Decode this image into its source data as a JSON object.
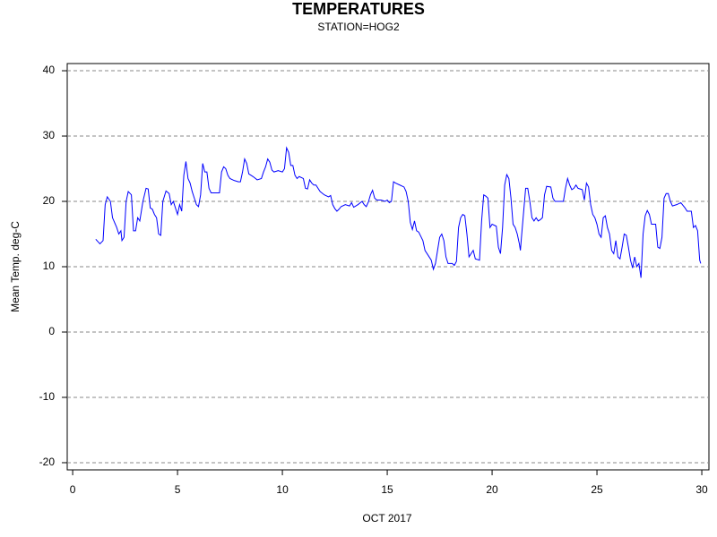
{
  "chart_data": {
    "type": "line",
    "title": "TEMPERATURES",
    "subtitle": "STATION=HOG2",
    "x_label": "OCT 2017",
    "y_label": "Mean Temp. deg-C",
    "xlim": [
      -0.26,
      30.34
    ],
    "ylim": [
      -21.1,
      41.1
    ],
    "xticks": [
      0,
      5,
      10,
      15,
      20,
      25,
      30
    ],
    "yticks": [
      -20,
      -10,
      0,
      10,
      20,
      30,
      40
    ],
    "grid": true,
    "series": [
      {
        "color": "#0000ff",
        "x": [
          1.1,
          1.3,
          1.45,
          1.55,
          1.65,
          1.8,
          1.9,
          2.1,
          2.2,
          2.3,
          2.35,
          2.45,
          2.55,
          2.65,
          2.8,
          2.9,
          3.0,
          3.1,
          3.2,
          3.35,
          3.5,
          3.6,
          3.7,
          3.8,
          3.9,
          4.0,
          4.1,
          4.2,
          4.3,
          4.45,
          4.6,
          4.7,
          4.8,
          4.9,
          5.0,
          5.1,
          5.2,
          5.3,
          5.4,
          5.5,
          5.6,
          5.7,
          5.8,
          5.9,
          6.0,
          6.1,
          6.2,
          6.3,
          6.4,
          6.5,
          6.6,
          6.8,
          7.0,
          7.1,
          7.2,
          7.3,
          7.4,
          7.5,
          7.7,
          7.9,
          8.0,
          8.1,
          8.2,
          8.3,
          8.4,
          8.6,
          8.8,
          9.0,
          9.1,
          9.2,
          9.3,
          9.4,
          9.5,
          9.6,
          9.8,
          10.0,
          10.1,
          10.2,
          10.3,
          10.4,
          10.5,
          10.6,
          10.7,
          10.8,
          11.0,
          11.1,
          11.2,
          11.3,
          11.4,
          11.5,
          11.6,
          11.8,
          12.0,
          12.2,
          12.3,
          12.4,
          12.5,
          12.6,
          12.7,
          12.8,
          13.0,
          13.2,
          13.3,
          13.4,
          13.6,
          13.8,
          13.9,
          14.0,
          14.1,
          14.2,
          14.3,
          14.4,
          14.5,
          14.7,
          14.9,
          15.0,
          15.1,
          15.2,
          15.3,
          15.4,
          15.6,
          15.8,
          15.9,
          16.0,
          16.1,
          16.2,
          16.3,
          16.4,
          16.5,
          16.7,
          16.8,
          17.0,
          17.1,
          17.2,
          17.3,
          17.4,
          17.5,
          17.6,
          17.7,
          17.8,
          17.9,
          18.1,
          18.2,
          18.3,
          18.4,
          18.5,
          18.6,
          18.7,
          18.8,
          18.9,
          19.0,
          19.1,
          19.2,
          19.4,
          19.5,
          19.6,
          19.7,
          19.8,
          19.9,
          20.0,
          20.2,
          20.3,
          20.4,
          20.5,
          20.6,
          20.7,
          20.8,
          20.9,
          21.0,
          21.1,
          21.2,
          21.3,
          21.35,
          21.4,
          21.6,
          21.7,
          21.8,
          21.9,
          22.0,
          22.1,
          22.2,
          22.3,
          22.4,
          22.5,
          22.6,
          22.8,
          22.9,
          23.0,
          23.2,
          23.4,
          23.5,
          23.6,
          23.7,
          23.8,
          23.9,
          24.0,
          24.1,
          24.3,
          24.4,
          24.5,
          24.6,
          24.7,
          24.8,
          24.9,
          25.0,
          25.1,
          25.2,
          25.3,
          25.4,
          25.5,
          25.6,
          25.7,
          25.8,
          25.9,
          26.0,
          26.1,
          26.2,
          26.3,
          26.4,
          26.5,
          26.6,
          26.7,
          26.8,
          26.9,
          27.0,
          27.1,
          27.2,
          27.3,
          27.4,
          27.5,
          27.6,
          27.8,
          27.9,
          28.0,
          28.1,
          28.2,
          28.3,
          28.4,
          28.5,
          28.6,
          28.8,
          29.0,
          29.2,
          29.3,
          29.5,
          29.6,
          29.7,
          29.8,
          29.9,
          29.95
        ],
        "values": [
          14.2,
          13.5,
          14,
          19.5,
          20.7,
          20,
          17.5,
          16,
          15,
          15.5,
          14,
          14.5,
          20,
          21.5,
          21,
          15.5,
          15.5,
          17.5,
          17,
          20,
          22,
          21.9,
          19,
          18.8,
          18,
          17.5,
          15,
          14.8,
          20,
          21.6,
          21.2,
          19.5,
          20,
          19,
          18,
          19.5,
          18.5,
          24,
          26.1,
          23.5,
          22.8,
          21.5,
          20.5,
          19.5,
          19.2,
          21,
          25.8,
          24.5,
          24.5,
          22,
          21.3,
          21.3,
          21.3,
          24.5,
          25.3,
          25,
          24,
          23.5,
          23.2,
          23,
          23,
          24.5,
          26.5,
          25.8,
          24.2,
          23.8,
          23.3,
          23.5,
          24.5,
          25.3,
          26.5,
          26,
          24.8,
          24.5,
          24.7,
          24.5,
          25,
          28.2,
          27.5,
          25.5,
          25.5,
          24,
          23.5,
          23.8,
          23.5,
          22,
          21.9,
          23.3,
          22.8,
          22.5,
          22.5,
          21.5,
          21,
          20.7,
          20.9,
          19.5,
          18.9,
          18.5,
          18.8,
          19.2,
          19.5,
          19.3,
          19.8,
          19.1,
          19.5,
          20,
          19.5,
          19.2,
          19.9,
          21,
          21.7,
          20.5,
          20.2,
          20.2,
          20,
          20.2,
          19.8,
          20,
          23,
          22.8,
          22.5,
          22.2,
          21.5,
          20,
          16.8,
          15.7,
          17,
          15.5,
          15.3,
          14,
          12.5,
          11.5,
          11,
          9.6,
          10.5,
          12.5,
          14.5,
          15,
          14,
          11.5,
          10.5,
          10.5,
          10.2,
          10.8,
          16,
          17.5,
          18,
          17.8,
          15,
          11.5,
          12,
          12.5,
          11.2,
          11,
          17,
          21,
          20.8,
          20.5,
          16,
          16.5,
          16.2,
          13,
          12,
          16,
          22.5,
          24.1,
          23.5,
          20.5,
          16.5,
          16,
          15,
          13.5,
          12.5,
          14.5,
          22,
          22,
          20,
          17.5,
          17,
          17.5,
          17,
          17.2,
          17.5,
          21,
          22.3,
          22.2,
          20.5,
          20,
          20,
          20,
          22,
          23.5,
          22.5,
          21.8,
          22,
          22.5,
          22,
          21.8,
          20.2,
          22.8,
          22.2,
          19.5,
          18,
          17.5,
          16.5,
          15,
          14.5,
          17.5,
          17.8,
          16,
          15,
          12.5,
          12,
          14,
          11.5,
          11.2,
          13,
          15,
          14.8,
          13,
          11,
          9.8,
          11.5,
          10,
          10.5,
          8.3,
          15,
          17.8,
          18.6,
          18,
          16.5,
          16.5,
          13,
          12.8,
          14.5,
          20.5,
          21.2,
          21.2,
          20,
          19.3,
          19.5,
          19.8,
          19,
          18.5,
          18.5,
          16,
          16.3,
          15.5,
          11,
          10.5
        ]
      }
    ]
  }
}
